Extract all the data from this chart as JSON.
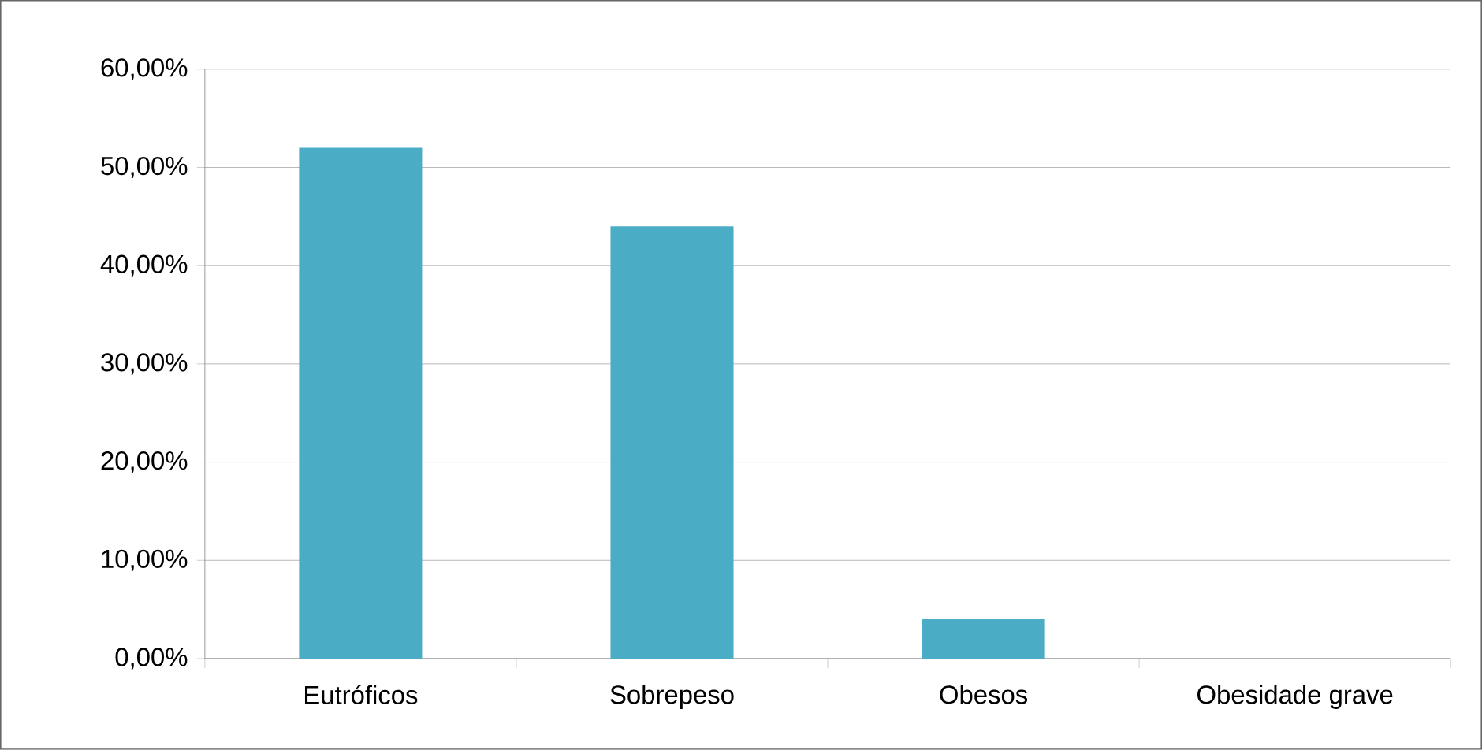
{
  "chart_data": {
    "type": "bar",
    "categories": [
      "Eutróficos",
      "Sobrepeso",
      "Obesos",
      "Obesidade grave"
    ],
    "values": [
      52,
      44,
      4,
      0
    ],
    "color": "#4bacc6",
    "ylim": [
      0,
      60
    ],
    "yticks": [
      {
        "value": 0,
        "label": "0,00%"
      },
      {
        "value": 10,
        "label": "10,00%"
      },
      {
        "value": 20,
        "label": "20,00%"
      },
      {
        "value": 30,
        "label": "30,00%"
      },
      {
        "value": 40,
        "label": "40,00%"
      },
      {
        "value": 50,
        "label": "50,00%"
      },
      {
        "value": 60,
        "label": "60,00%"
      }
    ],
    "grid": "y"
  }
}
